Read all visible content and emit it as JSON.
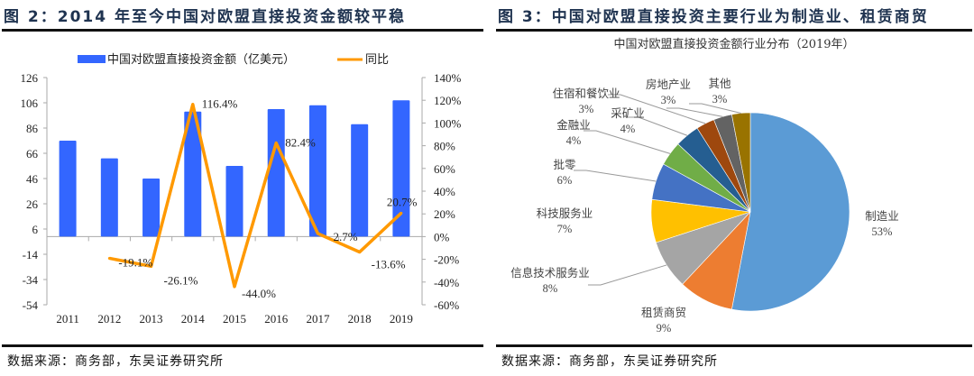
{
  "left": {
    "title": "图 2：2014 年至今中国对欧盟直接投资金额较平稳",
    "source": "数据来源：商务部，东吴证券研究所"
  },
  "right": {
    "title": "图 3：中国对欧盟直接投资主要行业为制造业、租赁商贸",
    "source": "数据来源：商务部，东吴证券研究所"
  },
  "chart_data": [
    {
      "type": "bar+line",
      "title": "",
      "categories": [
        "2011",
        "2012",
        "2013",
        "2014",
        "2015",
        "2016",
        "2017",
        "2018",
        "2019"
      ],
      "series": [
        {
          "name": "中国对欧盟直接投资金额（亿美元）",
          "type": "bar",
          "axis": "left",
          "color": "#3366ff",
          "values": [
            76,
            62,
            46,
            99,
            56,
            101,
            104,
            89,
            108
          ]
        },
        {
          "name": "同比",
          "type": "line",
          "axis": "right",
          "color": "#ff9900",
          "values": [
            null,
            -19.1,
            -26.1,
            116.4,
            -44.0,
            82.4,
            2.7,
            -13.6,
            20.7
          ],
          "labels": [
            "",
            "-19.1%",
            "-26.1%",
            "116.4%",
            "-44.0%",
            "82.4%",
            "2.7%",
            "-13.6%",
            "20.7%"
          ]
        }
      ],
      "y_left": {
        "ylim": [
          -54,
          126
        ],
        "ticks": [
          "126",
          "106",
          "86",
          "66",
          "46",
          "26",
          "6",
          "-14",
          "-34",
          "-54"
        ]
      },
      "y_right": {
        "ylim": [
          -60,
          140
        ],
        "ticks": [
          "140%",
          "120%",
          "100%",
          "80%",
          "60%",
          "40%",
          "20%",
          "0%",
          "-20%",
          "-40%",
          "-60%"
        ]
      },
      "legend": "top-center",
      "grid": false
    },
    {
      "type": "pie",
      "title": "中国对欧盟直接投资金额行业分布（2019年）",
      "start": "12 o'clock clockwise",
      "slices": [
        {
          "label": "制造业",
          "value": 53,
          "display": "53%",
          "color": "#5b9bd5"
        },
        {
          "label": "租赁商贸",
          "value": 9,
          "display": "9%",
          "color": "#ed7d31"
        },
        {
          "label": "信息技术服务业",
          "value": 8,
          "display": "8%",
          "color": "#a5a5a5"
        },
        {
          "label": "科技服务业",
          "value": 7,
          "display": "7%",
          "color": "#ffc000"
        },
        {
          "label": "批零",
          "value": 6,
          "display": "6%",
          "color": "#4472c4"
        },
        {
          "label": "金融业",
          "value": 4,
          "display": "4%",
          "color": "#70ad47"
        },
        {
          "label": "采矿业",
          "value": 4,
          "display": "4%",
          "color": "#255e91"
        },
        {
          "label": "住宿和餐饮业",
          "value": 3,
          "display": "3%",
          "color": "#9e480e"
        },
        {
          "label": "房地产业",
          "value": 3,
          "display": "3%",
          "color": "#636363"
        },
        {
          "label": "其他",
          "value": 3,
          "display": "3%",
          "color": "#997300"
        }
      ]
    }
  ]
}
